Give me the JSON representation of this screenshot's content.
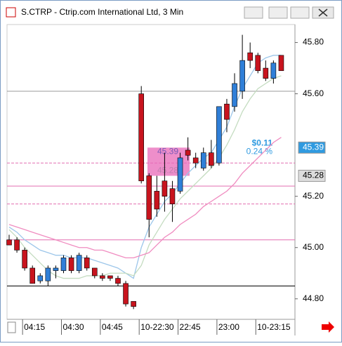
{
  "window": {
    "title": "S.CTRP - Ctrip.com International Ltd, 3 Min"
  },
  "chart_data": {
    "type": "candlestick",
    "categories": [
      null,
      null,
      "04:15",
      null,
      null,
      null,
      null,
      "04:30",
      null,
      null,
      null,
      null,
      "04:45",
      null,
      null,
      null,
      null,
      "10-22:30",
      null,
      null,
      null,
      null,
      "22:45",
      null,
      null,
      null,
      null,
      "23:00",
      null,
      null,
      null,
      null,
      "10-23:15",
      null,
      null,
      null
    ],
    "open": [
      45.03,
      45.03,
      44.99,
      44.92,
      44.87,
      44.87,
      44.91,
      44.91,
      44.96,
      44.91,
      44.96,
      44.92,
      44.89,
      44.89,
      44.88,
      44.86,
      44.79,
      45.6,
      45.28,
      45.22,
      45.26,
      45.23,
      45.22,
      45.38,
      45.35,
      45.31,
      45.37,
      45.33,
      45.56,
      45.55,
      45.61,
      45.76,
      45.75,
      45.7,
      45.66,
      45.75
    ],
    "high": [
      45.05,
      45.04,
      45.0,
      44.93,
      44.9,
      44.93,
      44.93,
      44.97,
      44.97,
      44.98,
      44.97,
      44.92,
      44.9,
      44.89,
      44.89,
      44.87,
      44.79,
      45.63,
      45.29,
      45.28,
      45.37,
      45.26,
      45.37,
      45.43,
      45.37,
      45.39,
      45.42,
      45.55,
      45.58,
      45.68,
      45.83,
      45.8,
      45.76,
      45.73,
      45.73,
      45.75
    ],
    "low": [
      45.01,
      44.98,
      44.91,
      44.86,
      44.86,
      44.85,
      44.88,
      44.9,
      44.9,
      44.9,
      44.91,
      44.88,
      44.87,
      44.87,
      44.85,
      44.77,
      44.76,
      45.25,
      45.04,
      45.12,
      45.14,
      45.1,
      45.21,
      45.34,
      45.31,
      45.3,
      45.31,
      45.32,
      45.45,
      45.53,
      45.58,
      45.7,
      45.68,
      45.65,
      45.64,
      45.69
    ],
    "close": [
      45.01,
      44.99,
      44.92,
      44.86,
      44.89,
      44.92,
      44.92,
      44.96,
      44.91,
      44.97,
      44.92,
      44.89,
      44.88,
      44.88,
      44.86,
      44.78,
      44.77,
      45.26,
      45.11,
      45.15,
      45.2,
      45.17,
      45.35,
      45.36,
      45.33,
      45.37,
      45.32,
      45.55,
      45.5,
      45.64,
      45.73,
      45.73,
      45.69,
      45.66,
      45.72,
      45.69
    ],
    "up_color": "#2f7fd8",
    "down_color": "#c8141e",
    "overlays": [
      {
        "color": "#9cc6ea",
        "values": [
          45.08,
          45.06,
          45.03,
          45.01,
          44.99,
          44.98,
          44.97,
          44.97,
          44.96,
          44.96,
          44.96,
          44.95,
          44.94,
          44.93,
          44.92,
          44.9,
          44.88,
          45.0,
          45.08,
          45.13,
          45.18,
          45.21,
          45.25,
          45.29,
          45.32,
          45.35,
          45.37,
          45.42,
          45.47,
          45.55,
          45.62,
          45.67,
          45.72,
          45.74,
          45.75,
          45.75
        ]
      },
      {
        "color": "#c4dcc0",
        "values": [
          45.07,
          45.04,
          45.0,
          44.97,
          44.94,
          44.91,
          44.89,
          44.88,
          44.88,
          44.88,
          44.89,
          44.89,
          44.89,
          44.9,
          44.9,
          44.9,
          44.89,
          44.93,
          45.01,
          45.06,
          45.11,
          45.15,
          45.19,
          45.22,
          45.25,
          45.28,
          45.31,
          45.35,
          45.4,
          45.46,
          45.53,
          45.58,
          45.62,
          45.64,
          45.66,
          45.67
        ]
      },
      {
        "color": "#f08cc0",
        "values": [
          45.09,
          45.08,
          45.07,
          45.06,
          45.05,
          45.04,
          45.03,
          45.02,
          45.01,
          45.0,
          45.0,
          44.99,
          44.99,
          44.98,
          44.97,
          44.96,
          44.96,
          44.97,
          44.98,
          45.01,
          45.04,
          45.06,
          45.09,
          45.11,
          45.13,
          45.16,
          45.18,
          45.2,
          45.22,
          45.25,
          45.29,
          45.32,
          45.35,
          45.38,
          45.41,
          45.43
        ]
      }
    ],
    "levels": [
      {
        "value": 45.61,
        "color": "#999999",
        "dash": false
      },
      {
        "value": 45.33,
        "color": "#e36fb0",
        "dash": true
      },
      {
        "value": 45.24,
        "color": "#e36fb0",
        "dash": false
      },
      {
        "value": 45.17,
        "color": "#e36fb0",
        "dash": true
      },
      {
        "value": 45.03,
        "color": "#e36fb0",
        "dash": false
      },
      {
        "value": 44.85,
        "color": "#000000",
        "dash": false
      }
    ],
    "measure": {
      "high": 45.39,
      "low": 45.28,
      "change_label": "$0.11",
      "percent_label": "0.24 %"
    },
    "ylim": [
      44.72,
      45.87
    ],
    "yticks": [
      {
        "value": 45.8,
        "label": "45.80"
      },
      {
        "value": 45.6,
        "label": "45.60"
      },
      {
        "value": 45.2,
        "label": "45.20"
      },
      {
        "value": 45.0,
        "label": "45.00"
      },
      {
        "value": 44.8,
        "label": "44.80"
      }
    ]
  }
}
